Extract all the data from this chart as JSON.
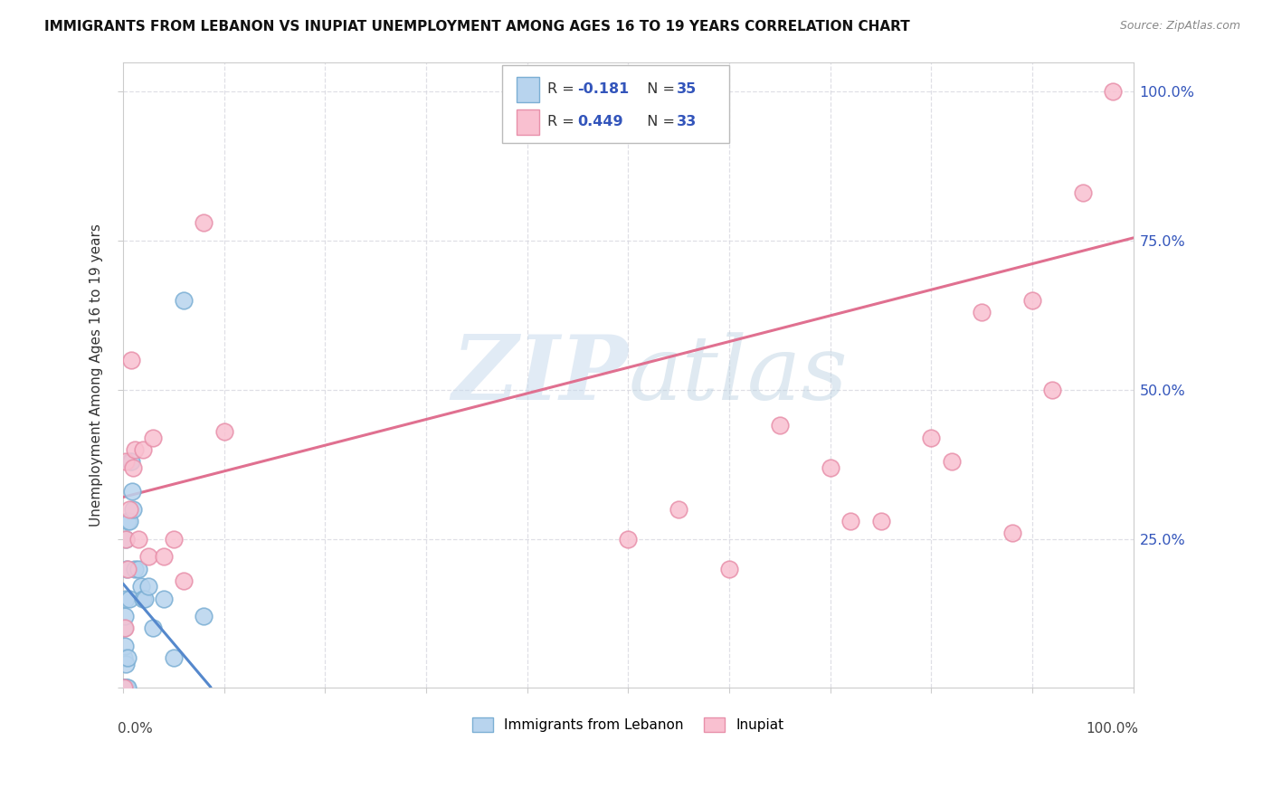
{
  "title": "IMMIGRANTS FROM LEBANON VS INUPIAT UNEMPLOYMENT AMONG AGES 16 TO 19 YEARS CORRELATION CHART",
  "source": "Source: ZipAtlas.com",
  "ylabel": "Unemployment Among Ages 16 to 19 years",
  "legend_label1": "Immigrants from Lebanon",
  "legend_label2": "Inupiat",
  "R1": -0.181,
  "N1": 35,
  "R2": 0.449,
  "N2": 33,
  "blue_face": "#b8d4ee",
  "blue_edge": "#7bafd4",
  "pink_face": "#f9c0d0",
  "pink_edge": "#e890aa",
  "trend_blue": "#5588cc",
  "trend_pink": "#e07090",
  "label_color": "#3355bb",
  "watermark_color": "#c8d8eb",
  "blue_line_intercept": 0.175,
  "blue_line_slope": -2.0,
  "pink_line_intercept": 0.32,
  "pink_line_slope": 0.435,
  "blue_dots_x": [
    0.001,
    0.001,
    0.001,
    0.001,
    0.001,
    0.002,
    0.002,
    0.002,
    0.002,
    0.003,
    0.003,
    0.003,
    0.003,
    0.004,
    0.004,
    0.005,
    0.005,
    0.005,
    0.006,
    0.006,
    0.007,
    0.008,
    0.009,
    0.01,
    0.012,
    0.015,
    0.018,
    0.02,
    0.022,
    0.025,
    0.03,
    0.04,
    0.05,
    0.06,
    0.08
  ],
  "blue_dots_y": [
    0.0,
    0.0,
    0.0,
    0.05,
    0.1,
    0.0,
    0.0,
    0.07,
    0.12,
    0.0,
    0.04,
    0.15,
    0.25,
    0.0,
    0.2,
    0.0,
    0.05,
    0.28,
    0.15,
    0.28,
    0.38,
    0.38,
    0.33,
    0.3,
    0.2,
    0.2,
    0.17,
    0.15,
    0.15,
    0.17,
    0.1,
    0.15,
    0.05,
    0.65,
    0.12
  ],
  "pink_dots_x": [
    0.001,
    0.002,
    0.003,
    0.003,
    0.005,
    0.006,
    0.008,
    0.01,
    0.012,
    0.015,
    0.02,
    0.025,
    0.03,
    0.04,
    0.05,
    0.06,
    0.08,
    0.1,
    0.5,
    0.55,
    0.6,
    0.65,
    0.7,
    0.72,
    0.75,
    0.8,
    0.82,
    0.85,
    0.88,
    0.9,
    0.92,
    0.95,
    0.98
  ],
  "pink_dots_y": [
    0.0,
    0.1,
    0.25,
    0.38,
    0.2,
    0.3,
    0.55,
    0.37,
    0.4,
    0.25,
    0.4,
    0.22,
    0.42,
    0.22,
    0.25,
    0.18,
    0.78,
    0.43,
    0.25,
    0.3,
    0.2,
    0.44,
    0.37,
    0.28,
    0.28,
    0.42,
    0.38,
    0.63,
    0.26,
    0.65,
    0.5,
    0.83,
    1.0
  ],
  "xlim": [
    0.0,
    1.0
  ],
  "ylim": [
    0.0,
    1.05
  ],
  "xticks": [
    0.0,
    0.1,
    0.2,
    0.3,
    0.4,
    0.5,
    0.6,
    0.7,
    0.8,
    0.9,
    1.0
  ],
  "yticks": [
    0.0,
    0.25,
    0.5,
    0.75,
    1.0
  ],
  "ytick_labels": [
    "",
    "25.0%",
    "50.0%",
    "75.0%",
    "100.0%"
  ],
  "grid_color": "#d8d8e0",
  "spine_color": "#cccccc"
}
